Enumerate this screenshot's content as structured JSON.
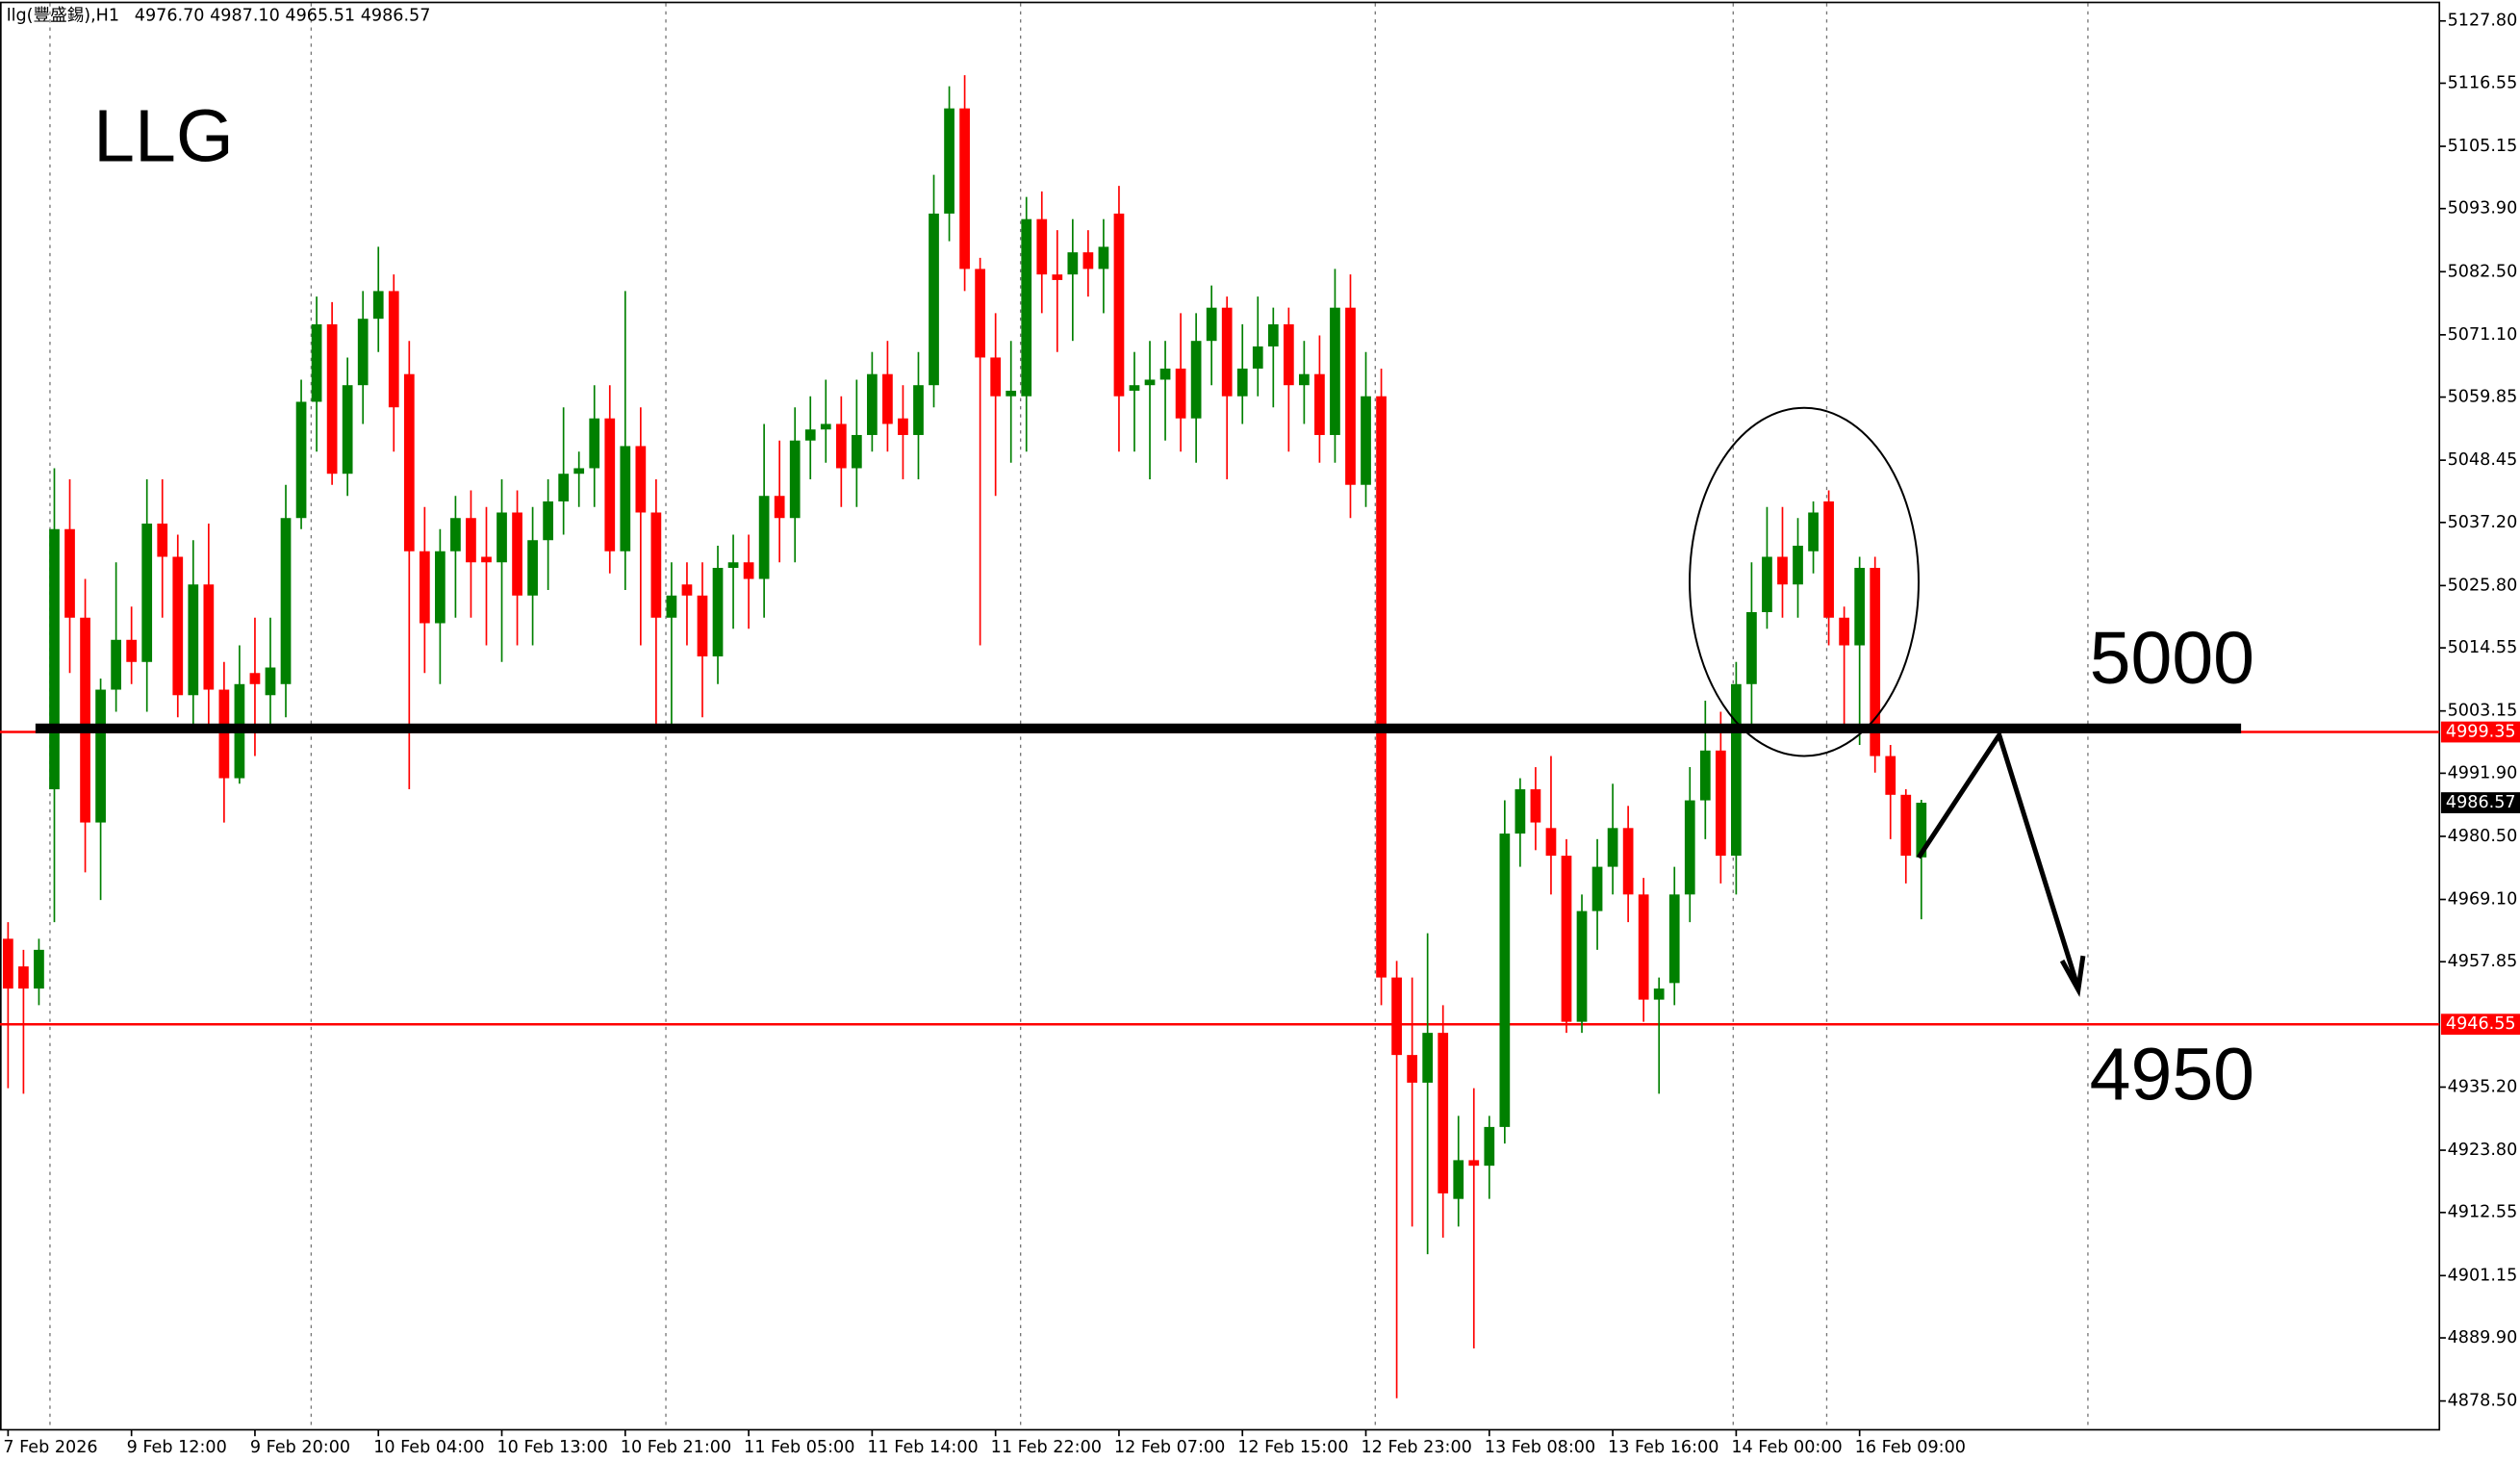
{
  "chart_data": {
    "type": "candlestick",
    "title": "LLG",
    "header": {
      "symbol": "llg(豐盛錫),H1",
      "ohlc": [
        "4976.70",
        "4987.10",
        "4965.51",
        "4986.57"
      ]
    },
    "up_color": "#008000",
    "down_color": "#ff0000",
    "open": [
      4962,
      4957,
      4953,
      4989,
      5036,
      5020,
      4983,
      5007,
      5016,
      5012,
      5037,
      5031,
      5006,
      5026,
      5007,
      4991,
      5010,
      5006,
      5008,
      5038,
      5059,
      5073,
      5046,
      5062,
      5074,
      5079,
      5064,
      5032,
      5019,
      5032,
      5038,
      5031,
      5030,
      5039,
      5024,
      5034,
      5041,
      5046,
      5047,
      5056,
      5032,
      5051,
      5039,
      5020,
      5026,
      5024,
      5013,
      5029,
      5030,
      5027,
      5042,
      5038,
      5052,
      5054,
      5055,
      5047,
      5053,
      5064,
      5056,
      5053,
      5062,
      5093,
      5112,
      5083,
      5067,
      5060,
      5060,
      5092,
      5082,
      5082,
      5086,
      5083,
      5093,
      5061,
      5062,
      5063,
      5065,
      5056,
      5070,
      5076,
      5060,
      5065,
      5069,
      5073,
      5062,
      5064,
      5053,
      5076,
      5044,
      5060,
      4955,
      4941,
      4936,
      4945,
      4915,
      4922,
      4921,
      4928,
      4981,
      4989,
      4982,
      4977,
      4947,
      4967,
      4975,
      4982,
      4970,
      4951,
      4954,
      4970,
      4987,
      4996,
      4977,
      5008,
      5021,
      5031,
      5026,
      5032,
      5041,
      5020,
      5015,
      5029,
      4995,
      4988,
      4976.7
    ],
    "high": [
      4965,
      4960,
      4962,
      5047,
      5045,
      5027,
      5009,
      5030,
      5022,
      5045,
      5045,
      5035,
      5034,
      5037,
      5012,
      5015,
      5020,
      5020,
      5044,
      5063,
      5078,
      5077,
      5067,
      5079,
      5087,
      5082,
      5070,
      5040,
      5036,
      5042,
      5043,
      5040,
      5045,
      5043,
      5040,
      5045,
      5058,
      5050,
      5062,
      5062,
      5079,
      5058,
      5045,
      5030,
      5030,
      5030,
      5033,
      5035,
      5035,
      5055,
      5052,
      5058,
      5060,
      5063,
      5060,
      5063,
      5068,
      5070,
      5062,
      5068,
      5100,
      5116,
      5118,
      5085,
      5075,
      5070,
      5096,
      5097,
      5090,
      5092,
      5090,
      5092,
      5098,
      5068,
      5070,
      5070,
      5075,
      5075,
      5080,
      5078,
      5073,
      5078,
      5076,
      5076,
      5070,
      5071,
      5083,
      5082,
      5068,
      5065,
      4958,
      4955,
      4963,
      4950,
      4930,
      4935,
      4930,
      4987,
      4991,
      4993,
      4995,
      4980,
      4970,
      4980,
      4990,
      4986,
      4973,
      4955,
      4975,
      4993,
      5005,
      5003,
      5012,
      5030,
      5040,
      5040,
      5038,
      5041,
      5043,
      5022,
      5031,
      5031,
      4997,
      4989,
      4987.1
    ],
    "low": [
      4935,
      4934,
      4950,
      4965,
      5010,
      4974,
      4969,
      5003,
      5008,
      5003,
      5020,
      5002,
      5000,
      5000,
      4983,
      4990,
      4995,
      5000,
      5002,
      5036,
      5050,
      5044,
      5042,
      5055,
      5068,
      5050,
      4989,
      5010,
      5008,
      5020,
      5020,
      5015,
      5012,
      5015,
      5015,
      5025,
      5035,
      5040,
      5040,
      5028,
      5025,
      5015,
      5000,
      5000,
      5015,
      5002,
      5008,
      5018,
      5018,
      5020,
      5030,
      5030,
      5045,
      5048,
      5040,
      5040,
      5050,
      5050,
      5045,
      5045,
      5058,
      5088,
      5079,
      5015,
      5042,
      5048,
      5050,
      5075,
      5068,
      5070,
      5078,
      5075,
      5050,
      5050,
      5045,
      5052,
      5050,
      5048,
      5062,
      5045,
      5055,
      5060,
      5058,
      5050,
      5055,
      5048,
      5048,
      5038,
      5040,
      4950,
      4879,
      4910,
      4905,
      4908,
      4910,
      4888,
      4915,
      4925,
      4975,
      4978,
      4970,
      4945,
      4945,
      4960,
      4970,
      4965,
      4947,
      4934,
      4950,
      4965,
      4980,
      4972,
      4970,
      5000,
      5018,
      5020,
      5020,
      5028,
      5015,
      5000,
      4997,
      4992,
      4980,
      4972,
      4965.51
    ],
    "close": [
      4953,
      4953,
      4960,
      5036,
      5020,
      4983,
      5007,
      5016,
      5012,
      5037,
      5031,
      5006,
      5026,
      5007,
      4991,
      5008,
      5008,
      5011,
      5038,
      5059,
      5073,
      5046,
      5062,
      5074,
      5079,
      5058,
      5032,
      5019,
      5032,
      5038,
      5030,
      5030,
      5039,
      5024,
      5034,
      5041,
      5046,
      5047,
      5056,
      5032,
      5051,
      5039,
      5020,
      5024,
      5024,
      5013,
      5029,
      5030,
      5027,
      5042,
      5038,
      5052,
      5054,
      5055,
      5047,
      5053,
      5064,
      5055,
      5053,
      5062,
      5093,
      5112,
      5083,
      5067,
      5060,
      5061,
      5092,
      5082,
      5081,
      5086,
      5083,
      5087,
      5060,
      5062,
      5063,
      5065,
      5056,
      5070,
      5076,
      5060,
      5065,
      5069,
      5073,
      5062,
      5064,
      5053,
      5076,
      5044,
      5060,
      4955,
      4941,
      4936,
      4945,
      4916,
      4922,
      4921,
      4928,
      4981,
      4989,
      4983,
      4977,
      4947,
      4967,
      4975,
      4982,
      4970,
      4951,
      4953,
      4970,
      4987,
      4996,
      4977,
      5008,
      5021,
      5031,
      5026,
      5033,
      5039,
      5020,
      5015,
      5029,
      4995,
      4988,
      4977,
      4986.57
    ],
    "xticks": [
      {
        "value": 0,
        "label": "7 Feb 2026"
      },
      {
        "value": 8,
        "label": "9 Feb 12:00"
      },
      {
        "value": 16,
        "label": "9 Feb 20:00"
      },
      {
        "value": 24,
        "label": "10 Feb 04:00"
      },
      {
        "value": 32,
        "label": "10 Feb 13:00"
      },
      {
        "value": 40,
        "label": "10 Feb 21:00"
      },
      {
        "value": 48,
        "label": "11 Feb 05:00"
      },
      {
        "value": 56,
        "label": "11 Feb 14:00"
      },
      {
        "value": 64,
        "label": "11 Feb 22:00"
      },
      {
        "value": 72,
        "label": "12 Feb 07:00"
      },
      {
        "value": 80,
        "label": "12 Feb 15:00"
      },
      {
        "value": 88,
        "label": "12 Feb 23:00"
      },
      {
        "value": 96,
        "label": "13 Feb 08:00"
      },
      {
        "value": 104,
        "label": "13 Feb 16:00"
      },
      {
        "value": 112,
        "label": "14 Feb 00:00"
      },
      {
        "value": 120,
        "label": "16 Feb 09:00"
      }
    ],
    "ylim": [
      4873.3,
      5131.0
    ],
    "yticks": [
      {
        "value": 5127.8,
        "label": "5127.80"
      },
      5116.55,
      5105.15,
      {
        "value": 5093.9,
        "label": "5093.90"
      },
      {
        "value": 5082.5,
        "label": "5082.50"
      },
      {
        "value": 5071.1,
        "label": "5071.10"
      },
      5059.85,
      5048.45,
      {
        "value": 5037.2,
        "label": "5037.20"
      },
      {
        "value": 5025.8,
        "label": "5025.80"
      },
      5014.55,
      5003.15,
      {
        "value": 4991.9,
        "label": "4991.90"
      },
      {
        "value": 4980.5,
        "label": "4980.50"
      },
      {
        "value": 4969.1,
        "label": "4969.10"
      },
      4957.85,
      {
        "value": 4935.2,
        "label": "4935.20"
      },
      {
        "value": 4923.8,
        "label": "4923.80"
      },
      4912.55,
      4901.15,
      {
        "value": 4889.9,
        "label": "4889.90"
      },
      {
        "value": 4878.5,
        "label": "4878.50"
      }
    ],
    "levels": [
      {
        "value": 4999.35,
        "color": "#ff0000"
      },
      {
        "value": 4946.55,
        "color": "#ff0000"
      }
    ],
    "key_line": {
      "value": 5000,
      "color": "#000000"
    },
    "annotations": [
      "4950"
    ]
  }
}
